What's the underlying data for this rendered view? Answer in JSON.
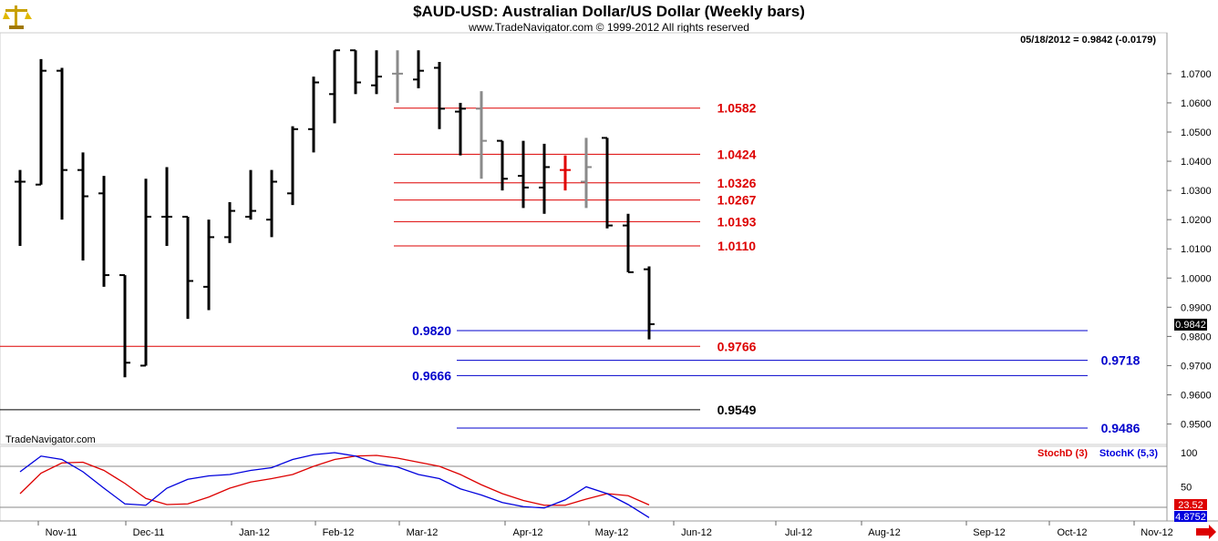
{
  "header": {
    "title": "$AUD-USD:  Australian Dollar/US Dollar  (Weekly bars)",
    "copyright": "www.TradeNavigator.com © 1999-2012 All rights reserved",
    "last_quote": "05/18/2012 = 0.9842 (-0.0179)",
    "watermark": "TradeNavigator.com",
    "logo_icon": "scales-icon"
  },
  "colors": {
    "up_bar": "#000000",
    "gray_bar": "#8a8a8a",
    "red_bar": "#e00000",
    "resistance": "#dd0000",
    "support": "#0000cc",
    "neutral": "#000000",
    "stoch_d": "#dd0000",
    "stoch_k": "#0000dd"
  },
  "chart_data": [
    {
      "type": "ohlc",
      "price_axis": {
        "ylim": [
          0.943,
          1.084
        ],
        "ticks": [
          "1.0700",
          "1.0600",
          "1.0500",
          "1.0400",
          "1.0300",
          "1.0200",
          "1.0100",
          "1.0000",
          "0.9900",
          "0.9800",
          "0.9700",
          "0.9600",
          "0.9500"
        ],
        "current_price": "0.9842"
      },
      "x_labels": [
        "Nov-11",
        "Dec-11",
        "Jan-12",
        "Feb-12",
        "Mar-12",
        "Apr-12",
        "May-12",
        "Jun-12",
        "Jul-12",
        "Aug-12",
        "Sep-12",
        "Oct-12",
        "Nov-12"
      ],
      "bars": [
        {
          "o": 1.033,
          "h": 1.037,
          "l": 1.011,
          "c": 1.033,
          "color": "black"
        },
        {
          "o": 1.032,
          "h": 1.075,
          "l": 1.032,
          "c": 1.071,
          "color": "black"
        },
        {
          "o": 1.071,
          "h": 1.072,
          "l": 1.02,
          "c": 1.037,
          "color": "black"
        },
        {
          "o": 1.037,
          "h": 1.043,
          "l": 1.006,
          "c": 1.028,
          "color": "black"
        },
        {
          "o": 1.029,
          "h": 1.035,
          "l": 0.997,
          "c": 1.001,
          "color": "black"
        },
        {
          "o": 1.001,
          "h": 1.001,
          "l": 0.966,
          "c": 0.971,
          "color": "black"
        },
        {
          "o": 0.97,
          "h": 1.034,
          "l": 0.97,
          "c": 1.021,
          "color": "black"
        },
        {
          "o": 1.021,
          "h": 1.038,
          "l": 1.011,
          "c": 1.021,
          "color": "black"
        },
        {
          "o": 1.021,
          "h": 1.021,
          "l": 0.986,
          "c": 0.999,
          "color": "black"
        },
        {
          "o": 0.997,
          "h": 1.02,
          "l": 0.989,
          "c": 1.014,
          "color": "black"
        },
        {
          "o": 1.014,
          "h": 1.026,
          "l": 1.012,
          "c": 1.023,
          "color": "black"
        },
        {
          "o": 1.021,
          "h": 1.037,
          "l": 1.02,
          "c": 1.023,
          "color": "black"
        },
        {
          "o": 1.02,
          "h": 1.037,
          "l": 1.014,
          "c": 1.033,
          "color": "black"
        },
        {
          "o": 1.029,
          "h": 1.052,
          "l": 1.025,
          "c": 1.051,
          "color": "black"
        },
        {
          "o": 1.051,
          "h": 1.069,
          "l": 1.043,
          "c": 1.067,
          "color": "black"
        },
        {
          "o": 1.063,
          "h": 1.078,
          "l": 1.053,
          "c": 1.078,
          "color": "black"
        },
        {
          "o": 1.078,
          "h": 1.078,
          "l": 1.063,
          "c": 1.067,
          "color": "black"
        },
        {
          "o": 1.066,
          "h": 1.078,
          "l": 1.063,
          "c": 1.069,
          "color": "black"
        },
        {
          "o": 1.07,
          "h": 1.078,
          "l": 1.06,
          "c": 1.07,
          "color": "gray"
        },
        {
          "o": 1.068,
          "h": 1.078,
          "l": 1.065,
          "c": 1.071,
          "color": "black"
        },
        {
          "o": 1.072,
          "h": 1.074,
          "l": 1.051,
          "c": 1.058,
          "color": "black"
        },
        {
          "o": 1.057,
          "h": 1.06,
          "l": 1.042,
          "c": 1.058,
          "color": "black"
        },
        {
          "o": 1.058,
          "h": 1.064,
          "l": 1.034,
          "c": 1.047,
          "color": "gray"
        },
        {
          "o": 1.047,
          "h": 1.047,
          "l": 1.03,
          "c": 1.034,
          "color": "black"
        },
        {
          "o": 1.035,
          "h": 1.047,
          "l": 1.024,
          "c": 1.031,
          "color": "black"
        },
        {
          "o": 1.031,
          "h": 1.046,
          "l": 1.022,
          "c": 1.038,
          "color": "black"
        },
        {
          "o": 1.037,
          "h": 1.042,
          "l": 1.03,
          "c": 1.037,
          "color": "red"
        },
        {
          "o": 1.033,
          "h": 1.048,
          "l": 1.024,
          "c": 1.038,
          "color": "gray"
        },
        {
          "o": 1.048,
          "h": 1.048,
          "l": 1.017,
          "c": 1.018,
          "color": "black"
        },
        {
          "o": 1.018,
          "h": 1.022,
          "l": 1.002,
          "c": 1.002,
          "color": "black"
        },
        {
          "o": 1.003,
          "h": 1.004,
          "l": 0.979,
          "c": 0.9842,
          "color": "black"
        }
      ],
      "levels": [
        {
          "value": 1.0582,
          "label": "1.0582",
          "color": "red",
          "x_from": 18,
          "x_to": 32,
          "label_side": "right-end"
        },
        {
          "value": 1.0424,
          "label": "1.0424",
          "color": "red",
          "x_from": 18,
          "x_to": 32,
          "label_side": "right-end"
        },
        {
          "value": 1.0326,
          "label": "1.0326",
          "color": "red",
          "x_from": 18,
          "x_to": 32,
          "label_side": "right-end"
        },
        {
          "value": 1.0267,
          "label": "1.0267",
          "color": "red",
          "x_from": 18,
          "x_to": 32,
          "label_side": "right-end"
        },
        {
          "value": 1.0193,
          "label": "1.0193",
          "color": "red",
          "x_from": 18,
          "x_to": 32,
          "label_side": "right-end"
        },
        {
          "value": 1.011,
          "label": "1.0110",
          "color": "red",
          "x_from": 18,
          "x_to": 32,
          "label_side": "right-end"
        },
        {
          "value": 0.982,
          "label": "0.9820",
          "color": "blue",
          "x_from": 21,
          "x_to": 49,
          "label_side": "left"
        },
        {
          "value": 0.9766,
          "label": "0.9766",
          "color": "red",
          "x_from": 0,
          "x_to": 32,
          "label_side": "right-end"
        },
        {
          "value": 0.9718,
          "label": "0.9718",
          "color": "blue",
          "x_from": 21,
          "x_to": 49,
          "label_side": "right"
        },
        {
          "value": 0.9666,
          "label": "0.9666",
          "color": "blue",
          "x_from": 21,
          "x_to": 49,
          "label_side": "left"
        },
        {
          "value": 0.9549,
          "label": "0.9549",
          "color": "black",
          "x_from": 0,
          "x_to": 32,
          "label_side": "right-end"
        },
        {
          "value": 0.9486,
          "label": "0.9486",
          "color": "blue",
          "x_from": 21,
          "x_to": 49,
          "label_side": "right"
        }
      ]
    },
    {
      "type": "line",
      "legend": [
        {
          "name": "StochD (3)",
          "color": "red"
        },
        {
          "name": "StochK (5,3)",
          "color": "blue"
        }
      ],
      "ylim": [
        0,
        100
      ],
      "ticks": [
        "100",
        "50"
      ],
      "ref_lines": [
        80,
        20
      ],
      "value_d": "23.52",
      "value_k": "4.8752",
      "series": [
        {
          "name": "StochD (3)",
          "values": [
            40,
            70,
            85,
            86,
            74,
            55,
            33,
            24,
            25,
            35,
            48,
            57,
            62,
            68,
            80,
            90,
            95,
            96,
            92,
            86,
            80,
            68,
            53,
            40,
            30,
            23,
            23,
            32,
            40,
            37,
            23.52
          ]
        },
        {
          "name": "StochK (5,3)",
          "values": [
            72,
            95,
            90,
            72,
            48,
            25,
            23,
            48,
            61,
            66,
            68,
            74,
            78,
            90,
            97,
            100,
            95,
            84,
            79,
            68,
            62,
            47,
            38,
            27,
            21,
            19,
            31,
            50,
            40,
            24,
            4.8752
          ]
        }
      ]
    }
  ]
}
